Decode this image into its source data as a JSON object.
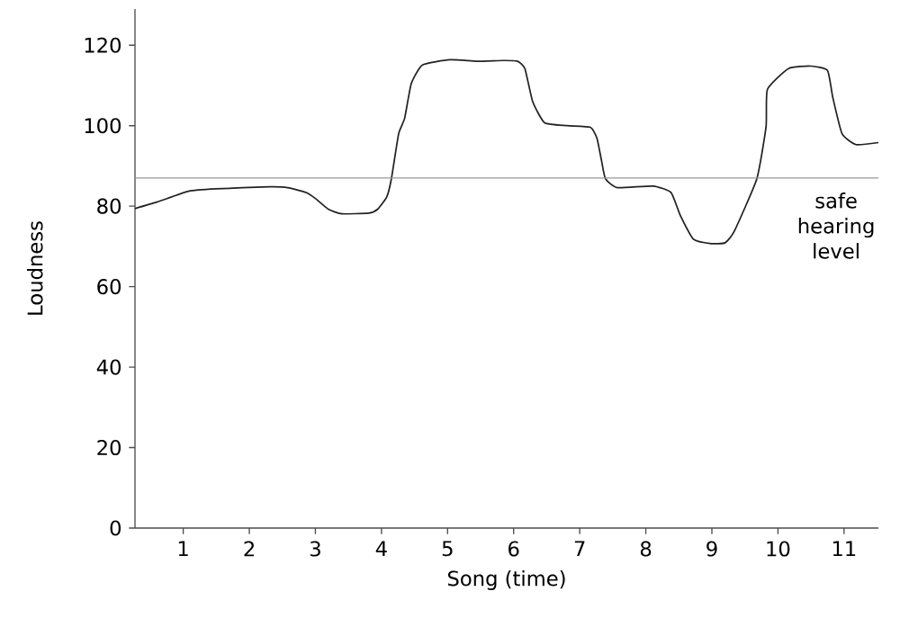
{
  "chart_data": {
    "type": "line",
    "xlabel": "Song (time)",
    "ylabel": "Loudness",
    "xlim": [
      0.27,
      11.52
    ],
    "ylim": [
      0,
      129
    ],
    "xticks": [
      1,
      2,
      3,
      4,
      5,
      6,
      7,
      8,
      9,
      10,
      11
    ],
    "yticks": [
      0,
      20,
      40,
      60,
      80,
      100,
      120
    ],
    "grid": false,
    "marker": "none",
    "line_style": "solid",
    "ref_lines": [
      {
        "axis": "y",
        "value": 87,
        "label": "safe hearing level",
        "color": "#999999"
      }
    ],
    "series": [
      {
        "color": "#222222",
        "x": [
          0.27,
          0.6,
          1.08,
          1.49,
          2.31,
          2.58,
          2.86,
          3.0,
          3.2,
          3.4,
          3.81,
          3.94,
          4.08,
          4.15,
          4.26,
          4.35,
          4.45,
          4.62,
          5.04,
          5.45,
          5.85,
          6.06,
          6.17,
          6.29,
          6.47,
          6.81,
          7.16,
          7.26,
          7.33,
          7.39,
          7.57,
          8.11,
          8.38,
          8.52,
          8.72,
          8.99,
          9.2,
          9.34,
          9.68,
          9.82,
          9.84,
          10.16,
          10.5,
          10.75,
          10.83,
          10.97,
          11.18,
          11.52
        ],
        "values": [
          79.4,
          81,
          83.7,
          84.3,
          84.8,
          84.6,
          83.4,
          81.9,
          79.2,
          78.1,
          78.3,
          79.2,
          82.3,
          86.8,
          98,
          101.8,
          110.4,
          115.1,
          116.4,
          116,
          116.2,
          116,
          114.2,
          105.9,
          100.7,
          100,
          99.6,
          96.9,
          91.3,
          86.8,
          84.6,
          85,
          83.4,
          77.8,
          71.8,
          70.7,
          70.9,
          73.8,
          86.8,
          99.8,
          109,
          114.2,
          114.8,
          113.7,
          107,
          98,
          95.3,
          95.8
        ]
      }
    ]
  }
}
